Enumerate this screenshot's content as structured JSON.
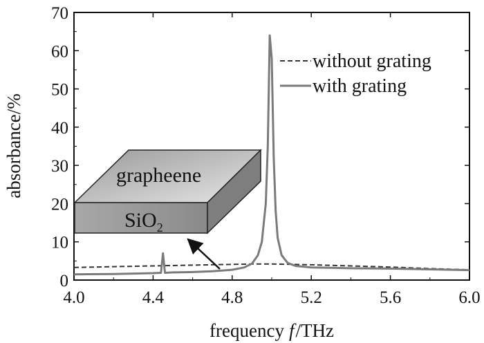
{
  "chart_data": {
    "type": "line",
    "xlabel_prefix": "frequency",
    "xlabel_var": "f",
    "xlabel_unit": "/THz",
    "ylabel": "absorbance/%",
    "xlim": [
      4.0,
      6.0
    ],
    "ylim": [
      0,
      70
    ],
    "xticks": [
      "4.0",
      "4.4",
      "4.8",
      "5.2",
      "5.6",
      "6.0"
    ],
    "yticks": [
      "0",
      "10",
      "20",
      "30",
      "40",
      "50",
      "60",
      "70"
    ],
    "legend_position": "top-right",
    "series": [
      {
        "name": "without grating",
        "style": "dashed",
        "color": "#333333",
        "x": [
          4.0,
          4.2,
          4.4,
          4.6,
          4.8,
          4.9,
          5.0,
          5.1,
          5.2,
          5.4,
          5.6,
          5.8,
          6.0
        ],
        "y": [
          3.3,
          3.5,
          3.7,
          3.9,
          4.1,
          4.2,
          4.2,
          4.1,
          4.0,
          3.7,
          3.4,
          3.0,
          2.7
        ]
      },
      {
        "name": "with grating",
        "style": "solid",
        "color": "#7a7a7a",
        "x": [
          4.0,
          4.2,
          4.4,
          4.44,
          4.45,
          4.46,
          4.5,
          4.6,
          4.7,
          4.8,
          4.86,
          4.9,
          4.93,
          4.95,
          4.97,
          4.98,
          4.99,
          5.0,
          5.01,
          5.02,
          5.03,
          5.05,
          5.08,
          5.12,
          5.2,
          5.3,
          5.4,
          5.6,
          5.8,
          6.0
        ],
        "y": [
          1.5,
          1.6,
          1.8,
          1.9,
          7.0,
          1.9,
          2.0,
          2.1,
          2.3,
          2.7,
          3.3,
          4.3,
          6.5,
          10.0,
          20.0,
          35.0,
          64.0,
          58.0,
          32.0,
          18.0,
          11.0,
          6.5,
          4.5,
          3.7,
          3.3,
          3.2,
          3.1,
          3.0,
          2.8,
          2.6
        ]
      }
    ],
    "annotations": {
      "inset_top_label": "grapheene",
      "inset_side_label": "SiO",
      "inset_side_subscript": "2"
    }
  }
}
